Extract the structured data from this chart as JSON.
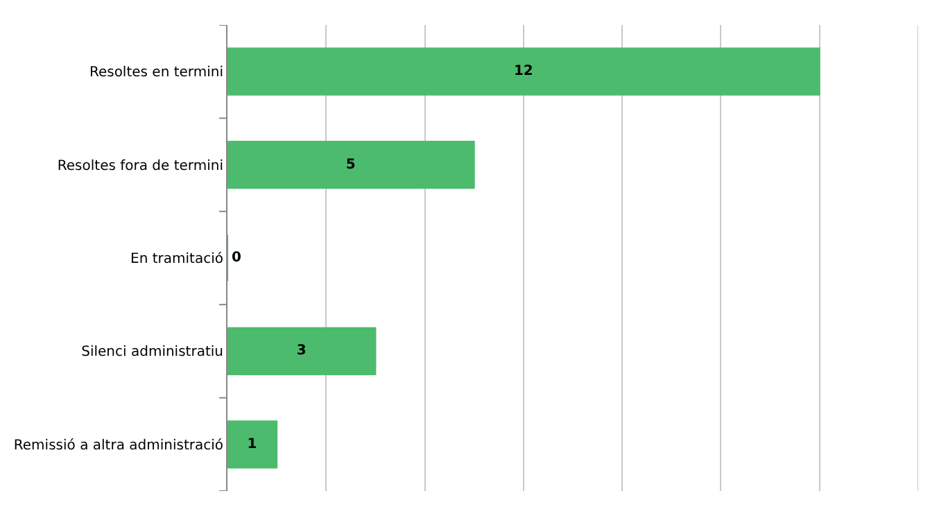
{
  "chart_data": {
    "type": "bar",
    "orientation": "horizontal",
    "categories": [
      "Resoltes en termini",
      "Resoltes fora de termini",
      "En tramitació",
      "Silenci administratiu",
      "Remissió a altra administració"
    ],
    "values": [
      12,
      5,
      0,
      3,
      1
    ],
    "color": "#4dbb6e",
    "xlim": [
      0,
      14
    ],
    "grid": "x",
    "tick_labels": "y",
    "data_labels": true
  }
}
